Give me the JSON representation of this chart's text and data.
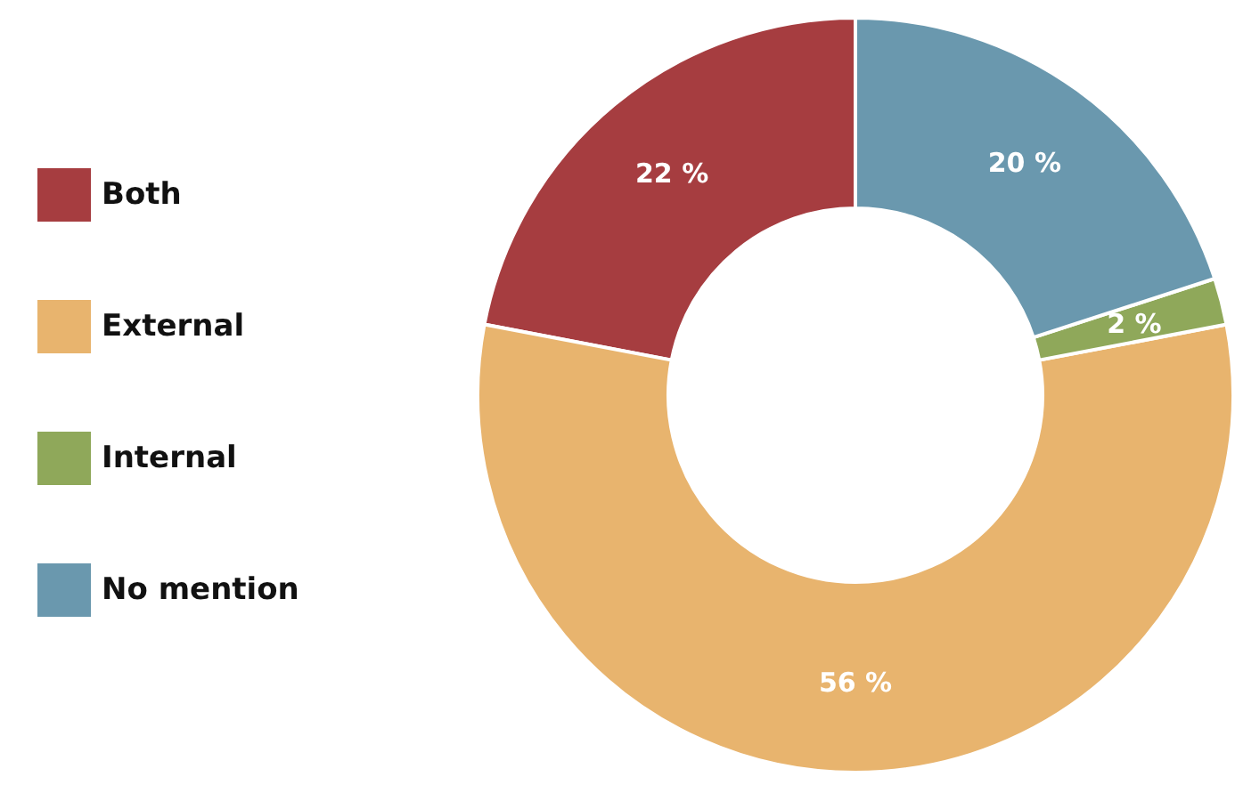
{
  "chart_data": {
    "type": "donut",
    "categories": [
      "Both",
      "External",
      "Internal",
      "No mention"
    ],
    "values": [
      22,
      56,
      2,
      20
    ],
    "value_labels": [
      "22 %",
      "56 %",
      "2 %",
      "20 %"
    ],
    "colors": [
      "#a63d40",
      "#e8b46e",
      "#8fa85a",
      "#6a98ae"
    ],
    "legend": "left"
  }
}
